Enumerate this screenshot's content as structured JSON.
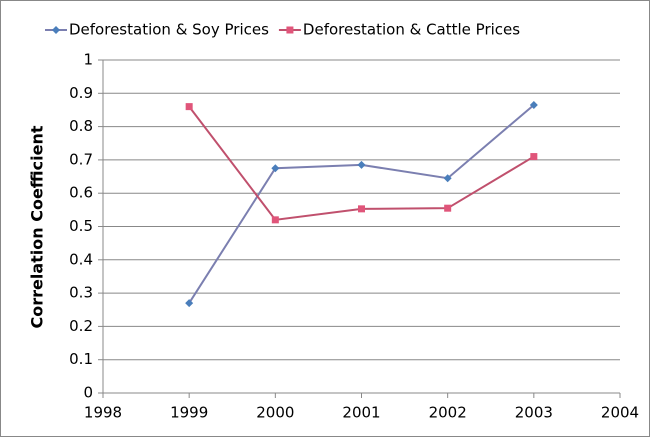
{
  "chart_data": {
    "type": "line",
    "y_label": "Correlation Coefficient",
    "x": [
      1999,
      2000,
      2001,
      2002,
      2003
    ],
    "series": [
      {
        "name": "Deforestation & Soy Prices",
        "color": "#4a7ebb",
        "line_color": "#7b7fb0",
        "marker": "diamond",
        "values": [
          0.27,
          0.675,
          0.685,
          0.645,
          0.865
        ]
      },
      {
        "name": "Deforestation & Cattle Prices",
        "color": "#e0557a",
        "line_color": "#c0506d",
        "marker": "square",
        "values": [
          0.86,
          0.52,
          0.553,
          0.555,
          0.71
        ]
      }
    ],
    "xlim": [
      1998,
      2004
    ],
    "xticks": [
      1998,
      1999,
      2000,
      2001,
      2002,
      2003,
      2004
    ],
    "ylim": [
      0,
      1
    ],
    "yticks": [
      0,
      0.1,
      0.2,
      0.3,
      0.4,
      0.5,
      0.6,
      0.7,
      0.8,
      0.9,
      1
    ],
    "grid": true,
    "legend": "top"
  }
}
